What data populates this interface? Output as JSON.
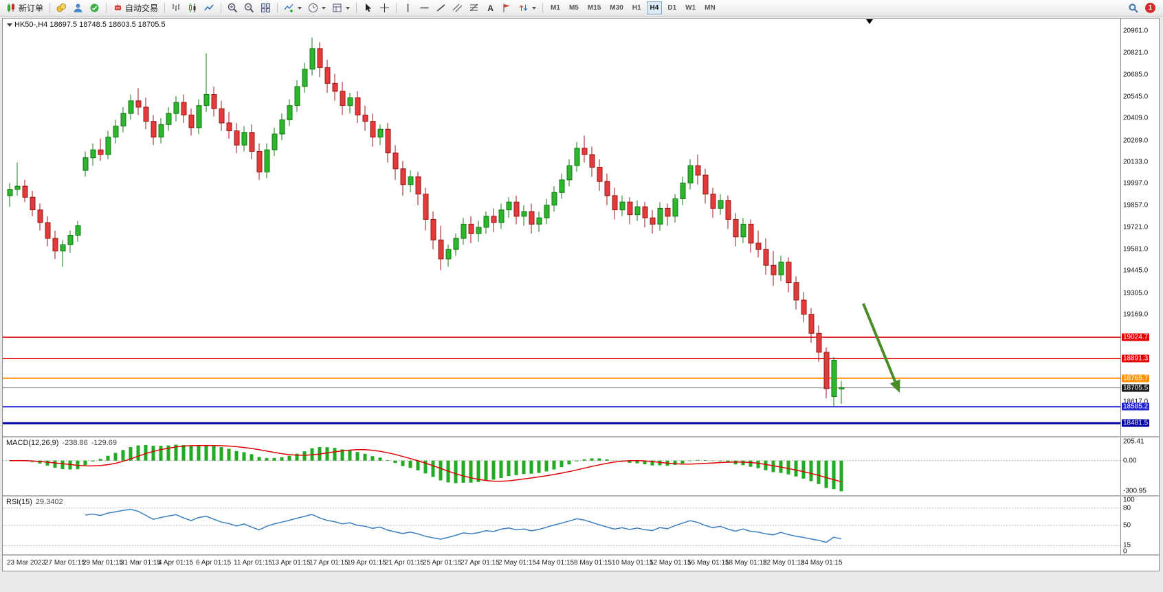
{
  "toolbar": {
    "new_order_label": "新订单",
    "auto_trading_label": "自动交易",
    "text_tool_glyph": "A",
    "timeframes": [
      "M1",
      "M5",
      "M15",
      "M30",
      "H1",
      "H4",
      "D1",
      "W1",
      "MN"
    ],
    "active_timeframe": "H4",
    "notification_count": "1"
  },
  "chart": {
    "title": "HK50-,H4 18697.5 18748.5 18603.5 18705.5",
    "axis_labels": [
      "20961.0",
      "20821.0",
      "20685.0",
      "20545.0",
      "20409.0",
      "20269.0",
      "20133.0",
      "19997.0",
      "19857.0",
      "19721.0",
      "19581.0",
      "19445.0",
      "19305.0",
      "19169.0",
      "18617.0"
    ],
    "hlines": [
      {
        "value": 19024.7,
        "label": "19024.7",
        "color": "#e00000",
        "label_bg": "#e00000",
        "w": 1.6
      },
      {
        "value": 18891.3,
        "label": "18891.3",
        "color": "#e00000",
        "label_bg": "#e00000",
        "w": 1.6
      },
      {
        "value": 18765.7,
        "label": "18765.7",
        "color": "#ff9000",
        "label_bg": "#ff9000",
        "w": 2
      },
      {
        "value": 18705.5,
        "label": "18705.5",
        "color": "#888888",
        "label_bg": "#1a1a1a",
        "w": 1
      },
      {
        "value": 18585.2,
        "label": "18585.2",
        "color": "#2020cc",
        "label_bg": "#2020cc",
        "w": 2
      },
      {
        "value": 18481.5,
        "label": "18481.5",
        "color": "#0000a0",
        "label_bg": "#0000a0",
        "w": 3
      }
    ],
    "arrow": {
      "from": [
        1252,
        415
      ],
      "to": [
        1305,
        545
      ],
      "color": "#4a8c28"
    }
  },
  "macd": {
    "name": "MACD(12,26,9)",
    "value": "-238.86",
    "signal_value": "-129.69",
    "axis": [
      "205.41",
      "0.00",
      "-300.95"
    ],
    "hist_color": "#22aa22",
    "signal_color": "#dd0000"
  },
  "rsi": {
    "name": "RSI(15)",
    "value": "29.3402",
    "axis": [
      "100",
      "80",
      "50",
      "15",
      "0"
    ],
    "levels": [
      80,
      50,
      15
    ],
    "line_color": "#3a7ebf"
  },
  "dates": [
    "23 Mar 2023",
    "27 Mar 01:15",
    "29 Mar 01:15",
    "31 Mar 01:15",
    "4 Apr 01:15",
    "6 Apr 01:15",
    "11 Apr 01:15",
    "13 Apr 01:15",
    "17 Apr 01:15",
    "19 Apr 01:15",
    "21 Apr 01:15",
    "25 Apr 01:15",
    "27 Apr 01:15",
    "2 May 01:15",
    "4 May 01:15",
    "8 May 01:15",
    "10 May 01:15",
    "12 May 01:15",
    "16 May 01:15",
    "18 May 01:15",
    "22 May 01:15",
    "24 May 01:15"
  ],
  "chart_data": {
    "type": "candlestick",
    "symbol": "HK50-",
    "timeframe": "H4",
    "current_bar": {
      "open": 18697.5,
      "high": 18748.5,
      "low": 18603.5,
      "close": 18705.5
    },
    "price_range": [
      18400,
      21040
    ],
    "label_step": 5,
    "up_color": "#2db52d",
    "up_border": "#117811",
    "down_color": "#e23b3b",
    "down_border": "#9c1414",
    "candles": [
      [
        19920,
        20000,
        19850,
        19960
      ],
      [
        19960,
        20130,
        19920,
        19980
      ],
      [
        19980,
        20020,
        19880,
        19910
      ],
      [
        19910,
        19950,
        19790,
        19830
      ],
      [
        19830,
        19870,
        19700,
        19750
      ],
      [
        19750,
        19790,
        19600,
        19650
      ],
      [
        19650,
        19700,
        19520,
        19570
      ],
      [
        19570,
        19640,
        19470,
        19610
      ],
      [
        19610,
        19700,
        19560,
        19670
      ],
      [
        19670,
        19760,
        19630,
        19730
      ],
      [
        20080,
        20200,
        20040,
        20160
      ],
      [
        20160,
        20250,
        20110,
        20210
      ],
      [
        20210,
        20280,
        20140,
        20180
      ],
      [
        20180,
        20330,
        20150,
        20290
      ],
      [
        20290,
        20400,
        20250,
        20360
      ],
      [
        20360,
        20480,
        20320,
        20440
      ],
      [
        20440,
        20560,
        20400,
        20520
      ],
      [
        20520,
        20600,
        20430,
        20480
      ],
      [
        20480,
        20540,
        20340,
        20390
      ],
      [
        20390,
        20430,
        20240,
        20290
      ],
      [
        20290,
        20410,
        20250,
        20370
      ],
      [
        20370,
        20480,
        20330,
        20440
      ],
      [
        20440,
        20550,
        20390,
        20510
      ],
      [
        20510,
        20560,
        20380,
        20430
      ],
      [
        20430,
        20470,
        20300,
        20350
      ],
      [
        20350,
        20530,
        20310,
        20490
      ],
      [
        20490,
        20820,
        20450,
        20560
      ],
      [
        20560,
        20610,
        20420,
        20470
      ],
      [
        20470,
        20520,
        20330,
        20380
      ],
      [
        20380,
        20450,
        20280,
        20330
      ],
      [
        20330,
        20380,
        20190,
        20240
      ],
      [
        20240,
        20360,
        20200,
        20320
      ],
      [
        20320,
        20370,
        20150,
        20200
      ],
      [
        20200,
        20250,
        20020,
        20070
      ],
      [
        20070,
        20250,
        20030,
        20210
      ],
      [
        20210,
        20350,
        20170,
        20310
      ],
      [
        20310,
        20440,
        20270,
        20400
      ],
      [
        20400,
        20530,
        20360,
        20490
      ],
      [
        20490,
        20650,
        20450,
        20610
      ],
      [
        20610,
        20760,
        20570,
        20720
      ],
      [
        20720,
        20920,
        20680,
        20850
      ],
      [
        20850,
        20890,
        20670,
        20730
      ],
      [
        20730,
        20780,
        20570,
        20630
      ],
      [
        20630,
        20690,
        20520,
        20580
      ],
      [
        20580,
        20640,
        20430,
        20490
      ],
      [
        20490,
        20570,
        20440,
        20540
      ],
      [
        20540,
        20580,
        20380,
        20430
      ],
      [
        20430,
        20490,
        20330,
        20390
      ],
      [
        20390,
        20440,
        20230,
        20290
      ],
      [
        20290,
        20370,
        20240,
        20340
      ],
      [
        20340,
        20380,
        20130,
        20190
      ],
      [
        20190,
        20240,
        20020,
        20090
      ],
      [
        20090,
        20140,
        19920,
        19990
      ],
      [
        19990,
        20080,
        19940,
        20040
      ],
      [
        20040,
        20070,
        19860,
        19930
      ],
      [
        19930,
        19970,
        19700,
        19770
      ],
      [
        19770,
        19820,
        19580,
        19640
      ],
      [
        19640,
        19730,
        19450,
        19520
      ],
      [
        19520,
        19610,
        19470,
        19580
      ],
      [
        19580,
        19680,
        19540,
        19650
      ],
      [
        19650,
        19780,
        19610,
        19740
      ],
      [
        19740,
        19790,
        19620,
        19680
      ],
      [
        19680,
        19760,
        19630,
        19720
      ],
      [
        19720,
        19820,
        19680,
        19790
      ],
      [
        19790,
        19840,
        19690,
        19750
      ],
      [
        19750,
        19870,
        19710,
        19830
      ],
      [
        19830,
        19910,
        19780,
        19880
      ],
      [
        19880,
        19920,
        19740,
        19790
      ],
      [
        19790,
        19860,
        19730,
        19820
      ],
      [
        19820,
        19870,
        19680,
        19740
      ],
      [
        19740,
        19820,
        19690,
        19780
      ],
      [
        19780,
        19900,
        19740,
        19860
      ],
      [
        19860,
        19980,
        19820,
        19940
      ],
      [
        19940,
        20060,
        19900,
        20020
      ],
      [
        20020,
        20150,
        19980,
        20110
      ],
      [
        20110,
        20260,
        20070,
        20220
      ],
      [
        20220,
        20300,
        20130,
        20180
      ],
      [
        20180,
        20230,
        20040,
        20100
      ],
      [
        20100,
        20150,
        19950,
        20010
      ],
      [
        20010,
        20060,
        19860,
        19920
      ],
      [
        19920,
        19970,
        19770,
        19830
      ],
      [
        19830,
        19920,
        19790,
        19880
      ],
      [
        19880,
        19910,
        19740,
        19800
      ],
      [
        19800,
        19890,
        19760,
        19850
      ],
      [
        19850,
        19880,
        19720,
        19780
      ],
      [
        19780,
        19830,
        19680,
        19740
      ],
      [
        19740,
        19880,
        19700,
        19840
      ],
      [
        19840,
        19870,
        19730,
        19790
      ],
      [
        19790,
        19930,
        19750,
        19900
      ],
      [
        19900,
        20040,
        19860,
        20000
      ],
      [
        20000,
        20150,
        19960,
        20110
      ],
      [
        20110,
        20180,
        19990,
        20050
      ],
      [
        20050,
        20090,
        19870,
        19930
      ],
      [
        19930,
        19970,
        19780,
        19840
      ],
      [
        19840,
        19930,
        19800,
        19890
      ],
      [
        19890,
        19920,
        19710,
        19770
      ],
      [
        19770,
        19810,
        19600,
        19660
      ],
      [
        19660,
        19780,
        19620,
        19740
      ],
      [
        19740,
        19770,
        19560,
        19620
      ],
      [
        19620,
        19700,
        19530,
        19580
      ],
      [
        19580,
        19650,
        19420,
        19480
      ],
      [
        19480,
        19570,
        19350,
        19420
      ],
      [
        19420,
        19540,
        19380,
        19500
      ],
      [
        19500,
        19530,
        19310,
        19370
      ],
      [
        19370,
        19410,
        19200,
        19260
      ],
      [
        19260,
        19310,
        19120,
        19170
      ],
      [
        19170,
        19210,
        18990,
        19050
      ],
      [
        19050,
        19100,
        18870,
        18930
      ],
      [
        18930,
        18960,
        18640,
        18700
      ],
      [
        18650,
        18900,
        18585,
        18880
      ],
      [
        18697.5,
        18748.5,
        18603.5,
        18705.5
      ]
    ],
    "indicators": [
      {
        "name": "MACD",
        "params": [
          12,
          26,
          9
        ],
        "values": [
          -238.86,
          -129.69
        ]
      },
      {
        "name": "RSI",
        "params": [
          15
        ],
        "values": [
          29.3402
        ]
      }
    ]
  }
}
